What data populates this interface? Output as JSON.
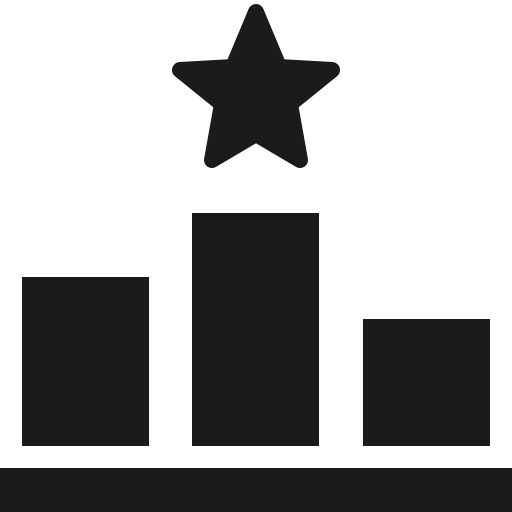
{
  "icon": {
    "name": "podium-ranking-icon",
    "colors": {
      "background": "#ffffff",
      "foreground": "#1b1b1b"
    },
    "parts": {
      "star": "star-icon",
      "left_block": "podium-left-block",
      "center_block": "podium-center-block",
      "right_block": "podium-right-block",
      "base": "podium-base"
    }
  }
}
